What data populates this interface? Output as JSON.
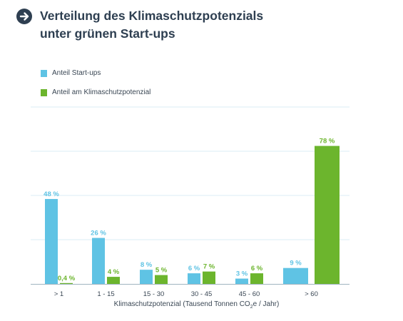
{
  "header": {
    "title_line1": "Verteilung des Klimaschutzpotenzials",
    "title_line2": "unter grünen Start-ups",
    "icon": "arrow-right-circle-icon"
  },
  "colors": {
    "title": "#2e3f51",
    "startups": "#5fc3e4",
    "potential": "#6cb52d",
    "grid": "#dbeef5",
    "axis": "#9fb4c0"
  },
  "chart_data": {
    "type": "bar",
    "categories": [
      "> 1",
      "1 - 15",
      "15 - 30",
      "30 - 45",
      "45 - 60",
      "> 60"
    ],
    "series": [
      {
        "name": "Anteil Start-ups",
        "values": [
          48,
          26,
          8,
          6,
          3,
          9
        ],
        "labels": [
          "48 %",
          "26 %",
          "8 %",
          "6 %",
          "3 %",
          "9 %"
        ]
      },
      {
        "name": "Anteil am Klimaschutzpotenzial",
        "values": [
          0.4,
          4,
          5,
          7,
          6,
          78
        ],
        "labels": [
          "0,4 %",
          "4 %",
          "5 %",
          "7 %",
          "6 %",
          "78 %"
        ]
      }
    ],
    "xlabel_prefix": "Klimaschutzpotenzial (Tausend Tonnen CO",
    "xlabel_sub": "2",
    "xlabel_suffix": "e / Jahr)",
    "ylim": [
      0,
      90
    ],
    "grid": true,
    "legend": "top-left"
  }
}
